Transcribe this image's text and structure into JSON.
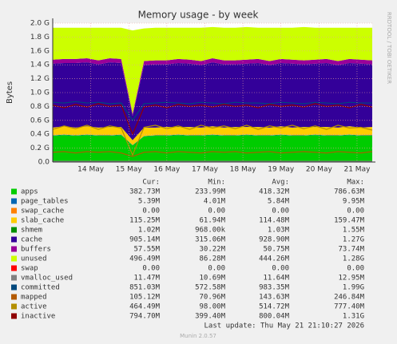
{
  "chart_data": {
    "type": "stacked-area",
    "title": "Memory usage - by week",
    "y_label": "Bytes",
    "side_label": "RRDTOOL / TOBI OETIKER",
    "footer": "Last update: Thu May 21 21:10:27 2026",
    "version": "Munin 2.0.57",
    "stat_headers": [
      "Cur:",
      "Min:",
      "Avg:",
      "Max:"
    ],
    "x": [
      13.0,
      13.3,
      13.6,
      13.9,
      14.2,
      14.5,
      14.8,
      15.1,
      15.4,
      15.7,
      16.0,
      16.3,
      16.6,
      16.9,
      17.2,
      17.5,
      17.8,
      18.1,
      18.4,
      18.7,
      19.0,
      19.3,
      19.6,
      19.9,
      20.2,
      20.5,
      20.8,
      21.1,
      21.4
    ],
    "xlim": [
      13.0,
      21.4
    ],
    "xticks": [
      {
        "value": 14,
        "label": "14 May"
      },
      {
        "value": 15,
        "label": "15 May"
      },
      {
        "value": 16,
        "label": "16 May"
      },
      {
        "value": 17,
        "label": "17 May"
      },
      {
        "value": 18,
        "label": "18 May"
      },
      {
        "value": 19,
        "label": "19 May"
      },
      {
        "value": 20,
        "label": "20 May"
      },
      {
        "value": 21,
        "label": "21 May"
      }
    ],
    "ylim": [
      0,
      2.0
    ],
    "yticks": [
      {
        "value": 0,
        "label": "0.0"
      },
      {
        "value": 0.2,
        "label": "0.2 G"
      },
      {
        "value": 0.4,
        "label": "0.4 G"
      },
      {
        "value": 0.6,
        "label": "0.6 G"
      },
      {
        "value": 0.8,
        "label": "0.8 G"
      },
      {
        "value": 1.0,
        "label": "1.0 G"
      },
      {
        "value": 1.2,
        "label": "1.2 G"
      },
      {
        "value": 1.4,
        "label": "1.4 G"
      },
      {
        "value": 1.6,
        "label": "1.6 G"
      },
      {
        "value": 1.8,
        "label": "1.8 G"
      },
      {
        "value": 2.0,
        "label": "2.0 G"
      }
    ],
    "grid": true,
    "series": [
      {
        "name": "apps",
        "color": "#00cc00",
        "kind": "area",
        "stats": [
          "382.73M",
          "233.99M",
          "418.32M",
          "786.63M"
        ],
        "values": [
          0.38,
          0.39,
          0.38,
          0.39,
          0.38,
          0.38,
          0.39,
          0.24,
          0.37,
          0.38,
          0.38,
          0.39,
          0.38,
          0.38,
          0.39,
          0.38,
          0.38,
          0.39,
          0.38,
          0.38,
          0.39,
          0.38,
          0.38,
          0.39,
          0.38,
          0.38,
          0.39,
          0.38,
          0.38
        ]
      },
      {
        "name": "page_tables",
        "color": "#0066b3",
        "kind": "area",
        "stats": [
          "5.39M",
          "4.01M",
          "5.84M",
          "9.95M"
        ],
        "values": [
          0.005,
          0.005,
          0.005,
          0.005,
          0.005,
          0.005,
          0.005,
          0.004,
          0.005,
          0.005,
          0.005,
          0.005,
          0.005,
          0.005,
          0.005,
          0.005,
          0.005,
          0.005,
          0.005,
          0.005,
          0.005,
          0.005,
          0.005,
          0.005,
          0.005,
          0.005,
          0.005,
          0.005,
          0.005
        ]
      },
      {
        "name": "swap_cache",
        "color": "#ff8000",
        "kind": "area",
        "stats": [
          "0.00",
          "0.00",
          "0.00",
          "0.00"
        ],
        "values": [
          0,
          0,
          0,
          0,
          0,
          0,
          0,
          0,
          0,
          0,
          0,
          0,
          0,
          0,
          0,
          0,
          0,
          0,
          0,
          0,
          0,
          0,
          0,
          0,
          0,
          0,
          0,
          0,
          0
        ]
      },
      {
        "name": "slab_cache",
        "color": "#ffcc00",
        "kind": "area",
        "stats": [
          "115.25M",
          "61.94M",
          "114.48M",
          "159.47M"
        ],
        "values": [
          0.11,
          0.12,
          0.11,
          0.12,
          0.11,
          0.12,
          0.11,
          0.07,
          0.12,
          0.11,
          0.12,
          0.11,
          0.12,
          0.11,
          0.12,
          0.11,
          0.12,
          0.11,
          0.12,
          0.11,
          0.12,
          0.11,
          0.12,
          0.11,
          0.12,
          0.11,
          0.12,
          0.11,
          0.12
        ]
      },
      {
        "name": "shmem",
        "color": "#008f00",
        "kind": "area",
        "stats": [
          "1.02M",
          "968.00k",
          "1.03M",
          "1.55M"
        ],
        "values": [
          0.001,
          0.001,
          0.001,
          0.001,
          0.001,
          0.001,
          0.001,
          0.001,
          0.001,
          0.001,
          0.001,
          0.001,
          0.001,
          0.001,
          0.001,
          0.001,
          0.001,
          0.001,
          0.001,
          0.001,
          0.001,
          0.001,
          0.001,
          0.001,
          0.001,
          0.001,
          0.001,
          0.001,
          0.001
        ]
      },
      {
        "name": "cache",
        "color": "#330099",
        "kind": "area",
        "stats": [
          "905.14M",
          "315.06M",
          "928.90M",
          "1.27G"
        ],
        "values": [
          0.92,
          0.91,
          0.93,
          0.92,
          0.91,
          0.93,
          0.92,
          0.35,
          0.9,
          0.91,
          0.9,
          0.92,
          0.91,
          0.9,
          0.92,
          0.91,
          0.9,
          0.91,
          0.92,
          0.9,
          0.91,
          0.92,
          0.9,
          0.91,
          0.92,
          0.9,
          0.91,
          0.92,
          0.9
        ]
      },
      {
        "name": "buffers",
        "color": "#990099",
        "kind": "area",
        "stats": [
          "57.55M",
          "30.22M",
          "50.75M",
          "73.74M"
        ],
        "values": [
          0.058,
          0.058,
          0.058,
          0.058,
          0.058,
          0.058,
          0.058,
          0.03,
          0.058,
          0.058,
          0.058,
          0.058,
          0.058,
          0.058,
          0.058,
          0.058,
          0.058,
          0.058,
          0.058,
          0.058,
          0.058,
          0.058,
          0.058,
          0.058,
          0.058,
          0.058,
          0.058,
          0.058,
          0.058
        ]
      },
      {
        "name": "unused",
        "color": "#ccff00",
        "kind": "area",
        "stats": [
          "496.49M",
          "86.28M",
          "444.26M",
          "1.28G"
        ],
        "values": [
          0.46,
          0.45,
          0.45,
          0.44,
          0.47,
          0.44,
          0.45,
          1.2,
          0.47,
          0.47,
          0.47,
          0.45,
          0.46,
          0.48,
          0.45,
          0.47,
          0.47,
          0.47,
          0.45,
          0.48,
          0.45,
          0.46,
          0.48,
          0.46,
          0.45,
          0.48,
          0.45,
          0.46,
          0.47
        ]
      },
      {
        "name": "swap",
        "color": "#ff0000",
        "kind": "area",
        "stats": [
          "0.00",
          "0.00",
          "0.00",
          "0.00"
        ],
        "values": [
          0,
          0,
          0,
          0,
          0,
          0,
          0,
          0,
          0,
          0,
          0,
          0,
          0,
          0,
          0,
          0,
          0,
          0,
          0,
          0,
          0,
          0,
          0,
          0,
          0,
          0,
          0,
          0,
          0
        ]
      },
      {
        "name": "vmalloc_used",
        "color": "#808080",
        "kind": "line",
        "stats": [
          "11.47M",
          "10.69M",
          "11.64M",
          "12.95M"
        ],
        "values": [
          0.011,
          0.011,
          0.011,
          0.011,
          0.011,
          0.011,
          0.011,
          0.011,
          0.011,
          0.011,
          0.011,
          0.011,
          0.011,
          0.011,
          0.011,
          0.011,
          0.011,
          0.011,
          0.011,
          0.011,
          0.011,
          0.011,
          0.011,
          0.011,
          0.011,
          0.011,
          0.011,
          0.011,
          0.011
        ]
      },
      {
        "name": "committed",
        "color": "#00487d",
        "kind": "line",
        "stats": [
          "851.03M",
          "572.58M",
          "983.35M",
          "1.99G"
        ],
        "values": [
          0.86,
          0.85,
          0.87,
          0.85,
          0.86,
          0.84,
          0.85,
          0.6,
          0.84,
          0.85,
          0.86,
          0.85,
          0.84,
          0.86,
          0.85,
          0.84,
          0.86,
          0.85,
          0.85,
          0.84,
          0.86,
          0.85,
          0.84,
          0.86,
          0.85,
          0.84,
          0.86,
          0.85,
          0.85
        ]
      },
      {
        "name": "mapped",
        "color": "#b35a00",
        "kind": "line",
        "stats": [
          "105.12M",
          "70.96M",
          "143.63M",
          "246.84M"
        ],
        "values": [
          0.14,
          0.15,
          0.13,
          0.15,
          0.14,
          0.15,
          0.13,
          0.08,
          0.14,
          0.15,
          0.13,
          0.15,
          0.14,
          0.13,
          0.15,
          0.14,
          0.15,
          0.13,
          0.14,
          0.15,
          0.13,
          0.14,
          0.15,
          0.14,
          0.13,
          0.15,
          0.14,
          0.13,
          0.15
        ]
      },
      {
        "name": "active",
        "color": "#b38f00",
        "kind": "line",
        "stats": [
          "464.49M",
          "98.00M",
          "514.72M",
          "777.40M"
        ],
        "values": [
          0.47,
          0.52,
          0.48,
          0.53,
          0.47,
          0.52,
          0.49,
          0.1,
          0.5,
          0.53,
          0.48,
          0.52,
          0.47,
          0.53,
          0.49,
          0.52,
          0.48,
          0.53,
          0.47,
          0.52,
          0.49,
          0.53,
          0.48,
          0.52,
          0.47,
          0.53,
          0.49,
          0.5,
          0.46
        ]
      },
      {
        "name": "inactive",
        "color": "#8f0000",
        "kind": "line",
        "stats": [
          "794.70M",
          "399.40M",
          "800.04M",
          "1.31G"
        ],
        "values": [
          0.82,
          0.78,
          0.83,
          0.79,
          0.84,
          0.8,
          0.82,
          0.4,
          0.79,
          0.82,
          0.78,
          0.83,
          0.8,
          0.82,
          0.79,
          0.83,
          0.8,
          0.82,
          0.78,
          0.83,
          0.8,
          0.82,
          0.79,
          0.84,
          0.8,
          0.82,
          0.78,
          0.83,
          0.79
        ]
      }
    ]
  }
}
